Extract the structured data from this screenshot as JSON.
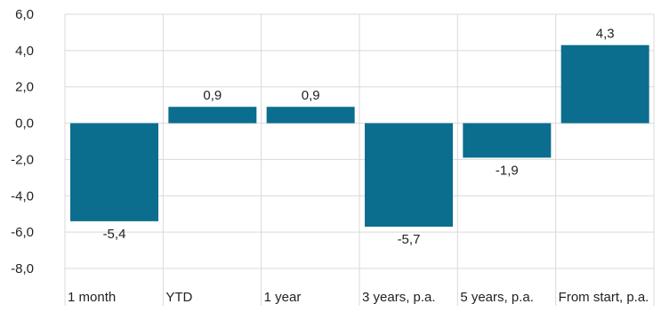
{
  "chart_data": {
    "type": "bar",
    "title": "",
    "xlabel": "",
    "ylabel": "",
    "categories": [
      "1 month",
      "YTD",
      "1 year",
      "3 years, p.a.",
      "5 years, p.a.",
      "From start, p.a."
    ],
    "values": [
      -5.4,
      0.9,
      0.9,
      -5.7,
      -1.9,
      4.3
    ],
    "value_labels": [
      "-5,4",
      "0,9",
      "0,9",
      "-5,7",
      "-1,9",
      "4,3"
    ],
    "ylim": [
      -8,
      6
    ],
    "yticks": [
      6,
      4,
      2,
      0,
      -2,
      -4,
      -6,
      -8
    ],
    "ytick_labels": [
      "6,0",
      "4,0",
      "2,0",
      "0,0",
      "-2,0",
      "-4,0",
      "-6,0",
      "-8,0"
    ],
    "grid": true,
    "bar_color": "#0b6e8e",
    "grid_color": "#d9d9d9"
  }
}
